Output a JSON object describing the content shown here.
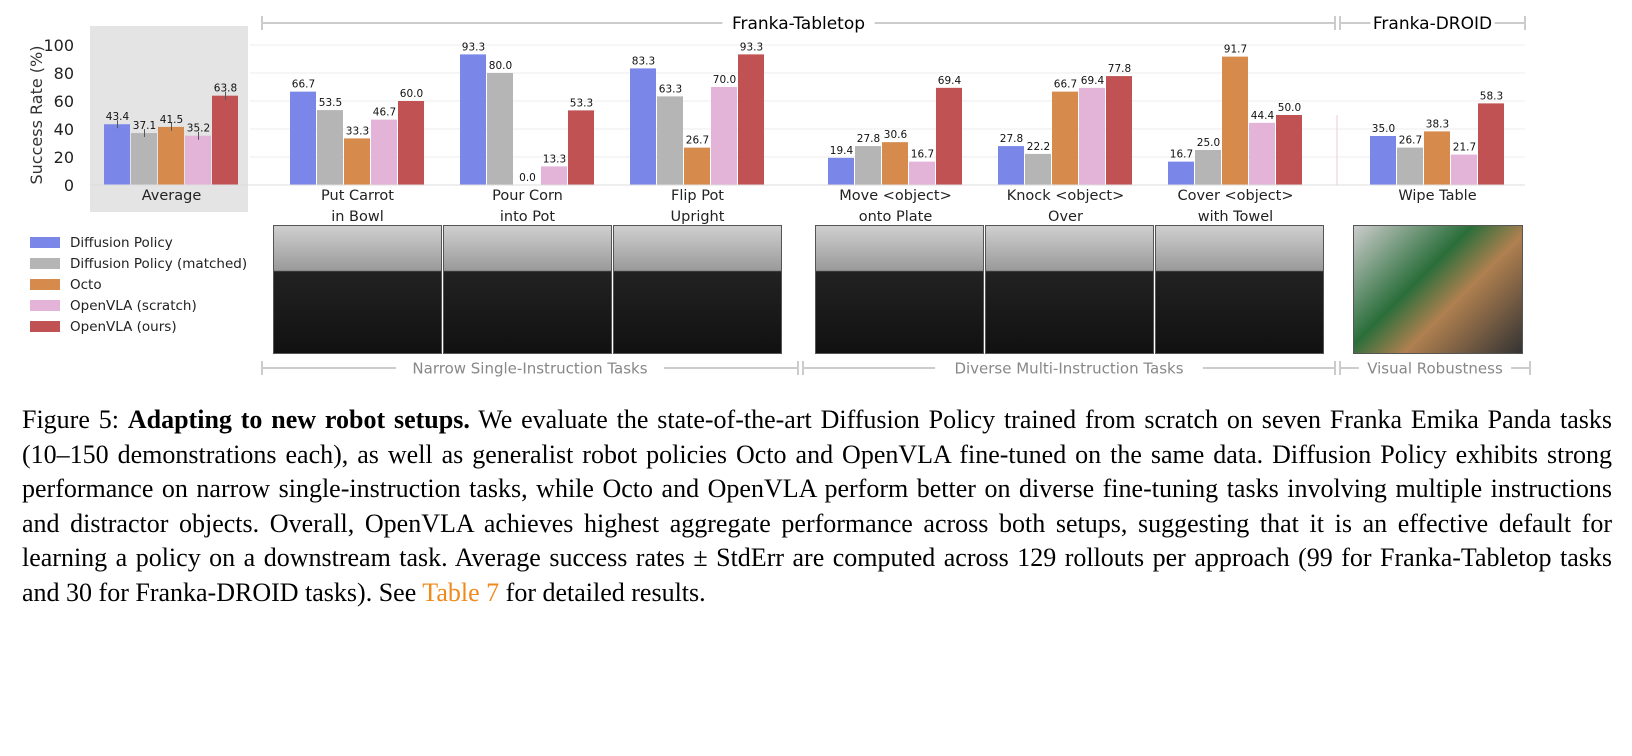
{
  "figure": {
    "top_groups": [
      "Franka-Tabletop",
      "Franka-DROID"
    ],
    "bottom_groups": [
      "Narrow Single-Instruction Tasks",
      "Diverse Multi-Instruction Tasks",
      "Visual Robustness"
    ]
  },
  "chart_data": {
    "type": "bar",
    "ylabel": "Success Rate (%)",
    "ylim": [
      0,
      100
    ],
    "yticks": [
      0,
      20,
      40,
      60,
      80,
      100
    ],
    "grid": true,
    "legend_position": "bottom-left",
    "categories": [
      "Average",
      "Put Carrot\nin Bowl",
      "Pour Corn\ninto Pot",
      "Flip Pot\nUpright",
      "Move <object>\nonto Plate",
      "Knock <object>\nOver",
      "Cover <object>\nwith Towel",
      "Wipe Table"
    ],
    "series": [
      {
        "name": "Diffusion Policy",
        "color": "#7b87e8",
        "values": [
          43.4,
          66.7,
          93.3,
          83.3,
          19.4,
          27.8,
          16.7,
          35.0
        ]
      },
      {
        "name": "Diffusion Policy (matched)",
        "color": "#b5b5b5",
        "values": [
          37.1,
          53.5,
          80.0,
          63.3,
          27.8,
          22.2,
          25.0,
          26.7
        ]
      },
      {
        "name": "Octo",
        "color": "#d68b4c",
        "values": [
          41.5,
          33.3,
          0.0,
          26.7,
          30.6,
          66.7,
          91.7,
          38.3
        ]
      },
      {
        "name": "OpenVLA (scratch)",
        "color": "#e3b3d8",
        "values": [
          35.2,
          46.7,
          13.3,
          70.0,
          16.7,
          69.4,
          44.4,
          21.7
        ]
      },
      {
        "name": "OpenVLA (ours)",
        "color": "#c05253",
        "values": [
          63.8,
          60.0,
          53.3,
          93.3,
          69.4,
          77.8,
          50.0,
          58.3
        ]
      }
    ]
  },
  "caption": {
    "label": "Figure 5:",
    "title": "Adapting to new robot setups.",
    "body": "We evaluate the state-of-the-art Diffusion Policy trained from scratch on seven Franka Emika Panda tasks (10–150 demonstrations each), as well as generalist robot policies Octo and OpenVLA fine-tuned on the same data. Diffusion Policy exhibits strong performance on narrow single-instruction tasks, while Octo and OpenVLA perform better on diverse fine-tuning tasks involving multiple instructions and distractor objects. Overall, OpenVLA achieves highest aggregate performance across both setups, suggesting that it is an effective default for learning a policy on a downstream task. Average success rates ± StdErr are computed across 129 rollouts per approach (99 for Franka-Tabletop tasks and 30 for Franka-DROID tasks). See",
    "link": "Table 7",
    "tail": "for detailed results."
  }
}
